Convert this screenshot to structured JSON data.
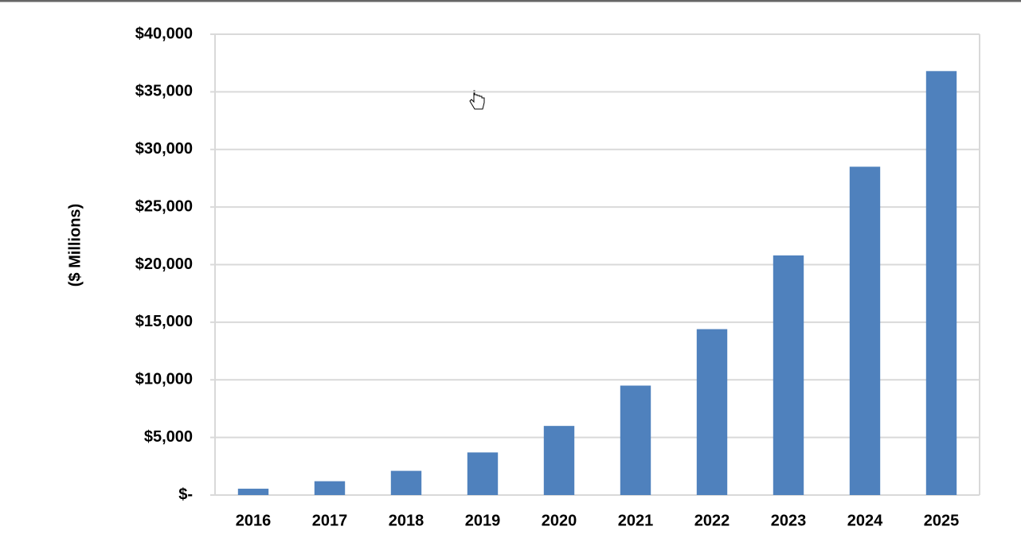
{
  "chart_data": {
    "type": "bar",
    "y_label": "($ Millions)",
    "categories": [
      "2016",
      "2017",
      "2018",
      "2019",
      "2020",
      "2021",
      "2022",
      "2023",
      "2024",
      "2025"
    ],
    "values": [
      550,
      1200,
      2100,
      3700,
      6000,
      9500,
      14400,
      20800,
      28500,
      36800
    ],
    "color": "#4f81bd",
    "ylim": [
      0,
      40000
    ],
    "yticks": [
      {
        "value": 0,
        "label": "$-"
      },
      {
        "value": 5000,
        "label": "$5,000"
      },
      {
        "value": 10000,
        "label": "$10,000"
      },
      {
        "value": 15000,
        "label": "$15,000"
      },
      {
        "value": 20000,
        "label": "$20,000"
      },
      {
        "value": 25000,
        "label": "$25,000"
      },
      {
        "value": 30000,
        "label": "$30,000"
      },
      {
        "value": 35000,
        "label": "$35,000"
      },
      {
        "value": 40000,
        "label": "$40,000"
      }
    ],
    "grid": true
  }
}
